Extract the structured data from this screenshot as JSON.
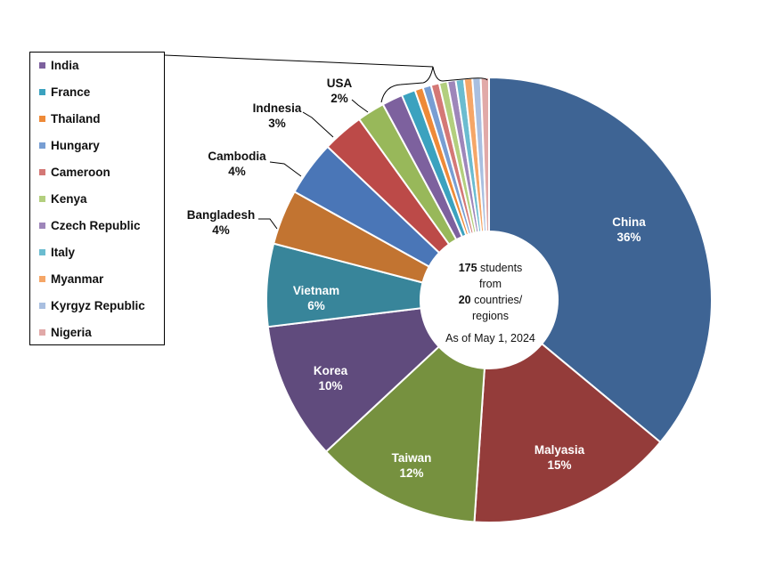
{
  "chart_data": {
    "type": "pie",
    "slices": [
      {
        "label": "China",
        "value": 36,
        "text": "36%",
        "color": "#3E6494"
      },
      {
        "label": "Malyasia",
        "value": 15,
        "text": "15%",
        "color": "#943C3A"
      },
      {
        "label": "Taiwan",
        "value": 12,
        "text": "12%",
        "color": "#76913F"
      },
      {
        "label": "Korea",
        "value": 10,
        "text": "10%",
        "color": "#604B7D"
      },
      {
        "label": "Vietnam",
        "value": 6,
        "text": "6%",
        "color": "#38859A"
      },
      {
        "label": "Bangladesh",
        "value": 4,
        "text": "4%",
        "color": "#C27431"
      },
      {
        "label": "Cambodia",
        "value": 4,
        "text": "4%",
        "color": "#4A76B7"
      },
      {
        "label": "Indnesia",
        "value": 3,
        "text": "3%",
        "color": "#BC4A48"
      },
      {
        "label": "USA",
        "value": 2,
        "text": "2%",
        "color": "#98B85A"
      },
      {
        "label": "India",
        "value": 1.5,
        "text": "",
        "color": "#7D619E"
      },
      {
        "label": "France",
        "value": 1,
        "text": "",
        "color": "#3BA2BF"
      },
      {
        "label": "Thailand",
        "value": 0.6,
        "text": "",
        "color": "#EE8A38"
      },
      {
        "label": "Hungary",
        "value": 0.6,
        "text": "",
        "color": "#789ED3"
      },
      {
        "label": "Cameroon",
        "value": 0.6,
        "text": "",
        "color": "#D47876"
      },
      {
        "label": "Kenya",
        "value": 0.6,
        "text": "",
        "color": "#B3CF7E"
      },
      {
        "label": "Czech Republic",
        "value": 0.6,
        "text": "",
        "color": "#9E86BA"
      },
      {
        "label": "Italy",
        "value": 0.6,
        "text": "",
        "color": "#6BBCD0"
      },
      {
        "label": "Myanmar",
        "value": 0.6,
        "text": "",
        "color": "#F5A667"
      },
      {
        "label": "Kyrgyz Republic",
        "value": 0.6,
        "text": "",
        "color": "#A9BFE0"
      },
      {
        "label": "Nigeria",
        "value": 0.6,
        "text": "",
        "color": "#E1A9A8"
      }
    ],
    "legend": [
      "India",
      "France",
      "Thailand",
      "Hungary",
      "Cameroon",
      "Kenya",
      "Czech Republic",
      "Italy",
      "Myanmar",
      "Kyrgyz Republic",
      "Nigeria"
    ],
    "legend_position": "left",
    "hole": true
  },
  "center": {
    "count": "175",
    "students": " students",
    "from": "from",
    "countries_count": "20",
    "countries": " countries/",
    "regions": "regions",
    "date": "As of May 1, 2024"
  }
}
